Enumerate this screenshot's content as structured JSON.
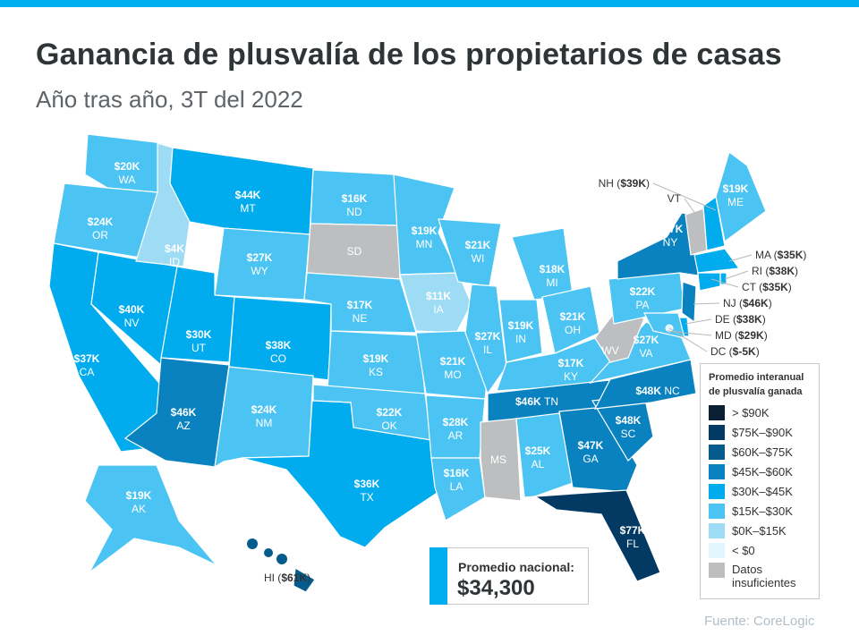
{
  "title": "Ganancia de plusvalía de los propietarios de casas",
  "subtitle": "Año tras año, 3T del  2022",
  "source": "Fuente:  CoreLogic",
  "national": {
    "label": "Promedio nacional:",
    "value": "$34,300"
  },
  "legend": {
    "title_line1": "Promedio interanual",
    "title_line2": "de plusvalía ganada",
    "items": [
      {
        "label": "> $90K",
        "color": "#0b1f33"
      },
      {
        "label": "$75K–$90K",
        "color": "#023a63"
      },
      {
        "label": "$60K–$75K",
        "color": "#045b8c"
      },
      {
        "label": "$45K–$60K",
        "color": "#0a82bf"
      },
      {
        "label": "$30K–$45K",
        "color": "#00acee"
      },
      {
        "label": "$15K–$30K",
        "color": "#4cc4f3"
      },
      {
        "label": "$0K–$15K",
        "color": "#9edcf6"
      },
      {
        "label": "< $0",
        "color": "#e3f5fd"
      },
      {
        "label": "Datos insuficientes",
        "color": "#bcbec0"
      }
    ]
  },
  "states": {
    "WA": {
      "value": "$20K",
      "k": 20
    },
    "OR": {
      "value": "$24K",
      "k": 24
    },
    "CA": {
      "value": "$37K",
      "k": 37
    },
    "NV": {
      "value": "$40K",
      "k": 40
    },
    "ID": {
      "value": "$4K",
      "k": 4
    },
    "MT": {
      "value": "$44K",
      "k": 44
    },
    "WY": {
      "value": "$27K",
      "k": 27
    },
    "UT": {
      "value": "$30K",
      "k": 30
    },
    "AZ": {
      "value": "$46K",
      "k": 46
    },
    "CO": {
      "value": "$38K",
      "k": 38
    },
    "NM": {
      "value": "$24K",
      "k": 24
    },
    "ND": {
      "value": "$16K",
      "k": 16
    },
    "SD": {
      "value": null,
      "k": null
    },
    "NE": {
      "value": "$17K",
      "k": 17
    },
    "KS": {
      "value": "$19K",
      "k": 19
    },
    "OK": {
      "value": "$22K",
      "k": 22
    },
    "TX": {
      "value": "$36K",
      "k": 36
    },
    "MN": {
      "value": "$19K",
      "k": 19
    },
    "IA": {
      "value": "$11K",
      "k": 11
    },
    "MO": {
      "value": "$21K",
      "k": 21
    },
    "AR": {
      "value": "$28K",
      "k": 28
    },
    "LA": {
      "value": "$16K",
      "k": 16
    },
    "WI": {
      "value": "$21K",
      "k": 21
    },
    "IL": {
      "value": "$27K",
      "k": 27
    },
    "MI": {
      "value": "$18K",
      "k": 18
    },
    "IN": {
      "value": "$19K",
      "k": 19
    },
    "OH": {
      "value": "$21K",
      "k": 21
    },
    "KY": {
      "value": "$17K",
      "k": 17
    },
    "TN": {
      "value": "$46K",
      "k": 46
    },
    "MS": {
      "value": null,
      "k": null
    },
    "AL": {
      "value": "$25K",
      "k": 25
    },
    "GA": {
      "value": "$47K",
      "k": 47
    },
    "FL": {
      "value": "$77K",
      "k": 77
    },
    "SC": {
      "value": "$48K",
      "k": 48
    },
    "NC": {
      "value": "$48K",
      "k": 48
    },
    "VA": {
      "value": "$27K",
      "k": 27
    },
    "WV": {
      "value": null,
      "k": null
    },
    "PA": {
      "value": "$22K",
      "k": 22
    },
    "NY": {
      "value": "$47K",
      "k": 47
    },
    "ME": {
      "value": "$19K",
      "k": 19
    },
    "VT": {
      "value": null,
      "k": null
    },
    "NH": {
      "value": "$39K",
      "k": 39
    },
    "MA": {
      "value": "$35K",
      "k": 35
    },
    "RI": {
      "value": "$38K",
      "k": 38
    },
    "CT": {
      "value": "$35K",
      "k": 35
    },
    "NJ": {
      "value": "$46K",
      "k": 46
    },
    "DE": {
      "value": "$38K",
      "k": 38
    },
    "MD": {
      "value": "$29K",
      "k": 29
    },
    "DC": {
      "value": "$-5K",
      "k": -5
    },
    "AK": {
      "value": "$19K",
      "k": 19
    },
    "HI": {
      "value": "$61K",
      "k": 61
    }
  }
}
